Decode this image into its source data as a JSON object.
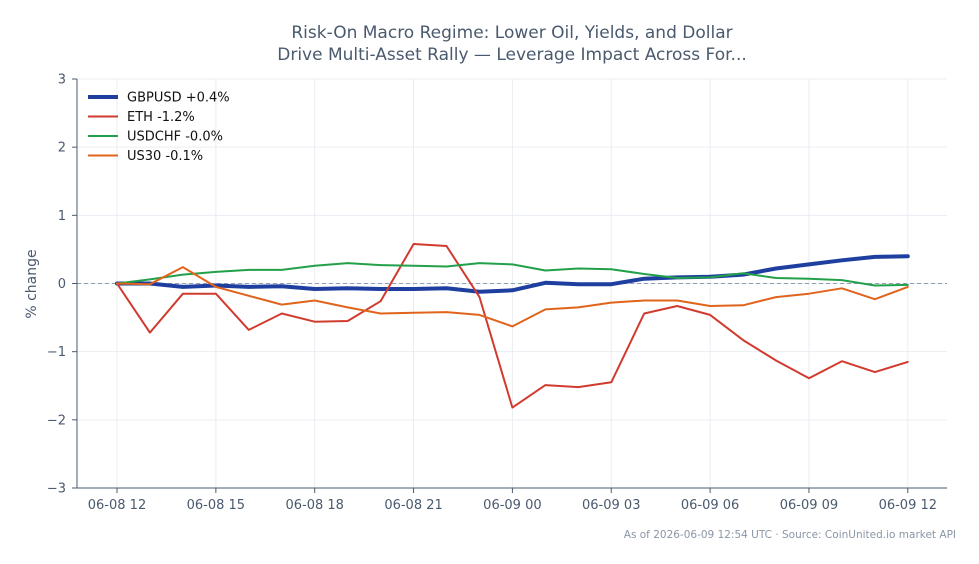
{
  "chart_data": {
    "type": "line",
    "title_line1": "Risk-On Macro Regime: Lower Oil, Yields, and Dollar",
    "title_line2": "Drive Multi-Asset Rally — Leverage Impact Across For...",
    "ylabel": "% change",
    "xlabel": "",
    "ylim": [
      -3,
      3
    ],
    "yticks": [
      3,
      2,
      1,
      0,
      -1,
      -2,
      -3
    ],
    "ytick_labels": [
      "3",
      "2",
      "1",
      "0",
      "−1",
      "−2",
      "−3"
    ],
    "xtick_labels": [
      "06-08 12",
      "06-08 15",
      "06-08 18",
      "06-08 21",
      "06-09 00",
      "06-09 03",
      "06-09 06",
      "06-09 09",
      "06-09 12"
    ],
    "x_hours": [
      0,
      1,
      2,
      3,
      4,
      5,
      6,
      7,
      8,
      9,
      10,
      11,
      12,
      13,
      14,
      15,
      16,
      17,
      18,
      19,
      20,
      21,
      22,
      23,
      24
    ],
    "grid": true,
    "zero_line": true,
    "legend_position": "top-left",
    "series": [
      {
        "name": "GBPUSD +0.4%",
        "color": "#1f3fa0",
        "width": 4,
        "values": [
          0.0,
          0.0,
          -0.05,
          -0.03,
          -0.05,
          -0.04,
          -0.08,
          -0.07,
          -0.08,
          -0.08,
          -0.07,
          -0.12,
          -0.1,
          0.01,
          -0.01,
          -0.01,
          0.07,
          0.09,
          0.1,
          0.13,
          0.22,
          0.28,
          0.34,
          0.39,
          0.4
        ]
      },
      {
        "name": "ETH -1.2%",
        "color": "#d13b2f",
        "width": 2,
        "values": [
          0.0,
          -0.72,
          -0.15,
          -0.15,
          -0.68,
          -0.44,
          -0.56,
          -0.55,
          -0.26,
          0.58,
          0.55,
          -0.2,
          -1.82,
          -1.49,
          -1.52,
          -1.45,
          -0.44,
          -0.33,
          -0.46,
          -0.83,
          -1.13,
          -1.39,
          -1.14,
          -1.3,
          -1.15
        ]
      },
      {
        "name": "USDCHF -0.0%",
        "color": "#23a04a",
        "width": 2,
        "values": [
          0.0,
          0.06,
          0.13,
          0.17,
          0.2,
          0.2,
          0.26,
          0.3,
          0.27,
          0.26,
          0.25,
          0.3,
          0.28,
          0.19,
          0.22,
          0.21,
          0.14,
          0.08,
          0.09,
          0.15,
          0.08,
          0.07,
          0.05,
          -0.03,
          -0.02
        ]
      },
      {
        "name": "US30 -0.1%",
        "color": "#e0641c",
        "width": 2,
        "values": [
          0.0,
          -0.01,
          0.24,
          -0.05,
          -0.18,
          -0.31,
          -0.25,
          -0.35,
          -0.44,
          -0.43,
          -0.42,
          -0.46,
          -0.63,
          -0.38,
          -0.35,
          -0.28,
          -0.25,
          -0.25,
          -0.33,
          -0.32,
          -0.2,
          -0.15,
          -0.07,
          -0.23,
          -0.05
        ]
      }
    ]
  },
  "footer": "As of 2026-06-09 12:54 UTC · Source: CoinUnited.io market API"
}
